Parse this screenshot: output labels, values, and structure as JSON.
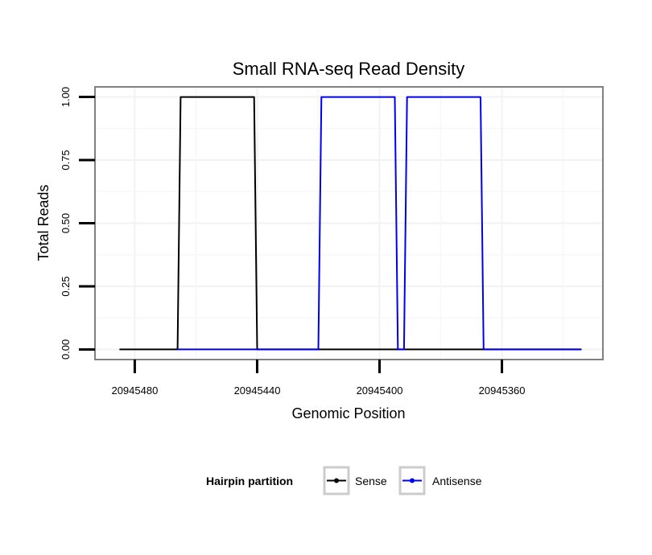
{
  "chart_data": {
    "type": "line",
    "title": "Small RNA-seq Read Density",
    "xlabel": "Genomic Position",
    "ylabel": "Total Reads",
    "xlim": [
      20945493,
      20945327
    ],
    "ylim": [
      -0.04,
      1.04
    ],
    "x_reversed": true,
    "grid": true,
    "x_ticks": [
      20945480,
      20945440,
      20945400,
      20945360
    ],
    "x_tick_labels": [
      "20945480",
      "20945440",
      "20945400",
      "20945360"
    ],
    "y_ticks": [
      0,
      0.25,
      0.5,
      0.75,
      1.0
    ],
    "y_tick_labels": [
      "0.00",
      "0.25",
      "0.50",
      "0.75",
      "1.00"
    ],
    "legend_title": "Hairpin partition",
    "legend_position": "bottom",
    "series": [
      {
        "name": "Sense",
        "color": "#000000",
        "x": [
          20945485,
          20945466,
          20945465,
          20945441,
          20945440,
          20945334
        ],
        "y": [
          0,
          0,
          1,
          1,
          0,
          0
        ]
      },
      {
        "name": "Antisense",
        "color": "#0000ee",
        "x": [
          20945466,
          20945420,
          20945419,
          20945395,
          20945394,
          20945392,
          20945391,
          20945367,
          20945366,
          20945334
        ],
        "y": [
          0,
          0,
          1,
          1,
          0,
          0,
          1,
          1,
          0,
          0
        ]
      }
    ]
  }
}
